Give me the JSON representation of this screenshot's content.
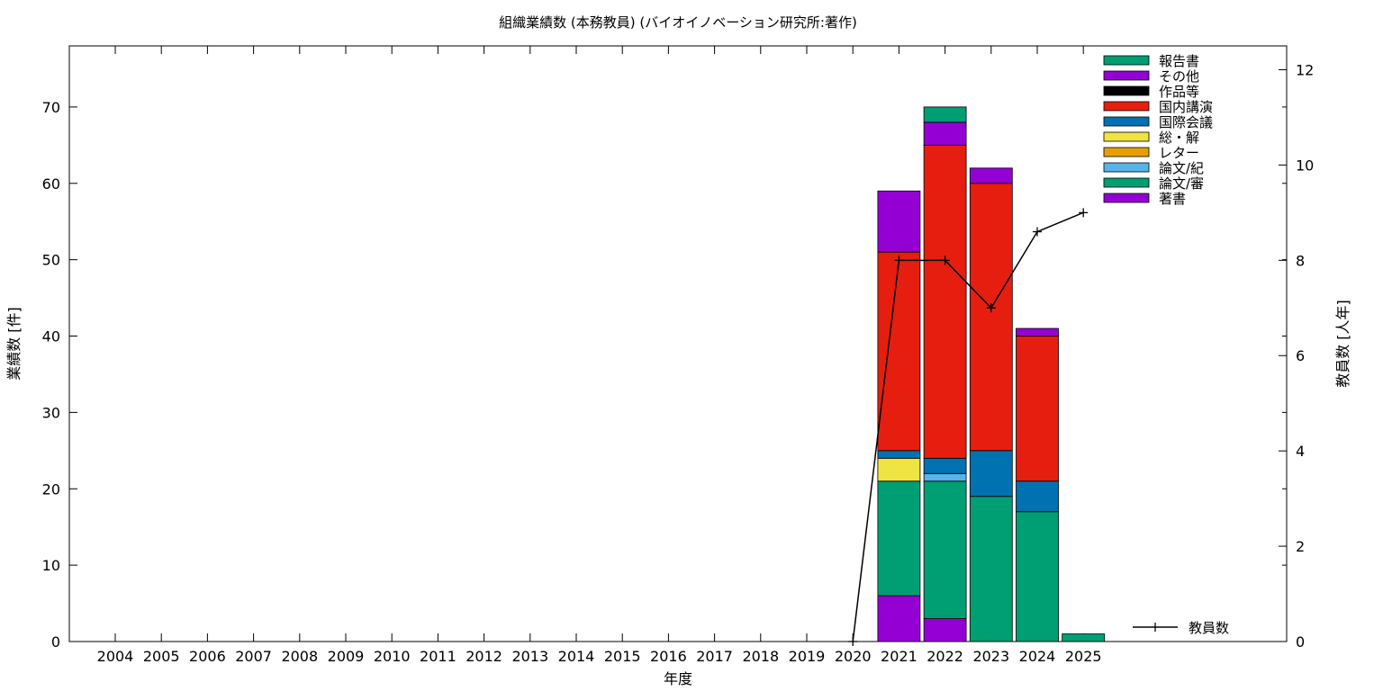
{
  "chart_data": {
    "type": "bar",
    "stacked": true,
    "title": "組織業績数 (本務教員) (バイオイノベーション研究所:著作)",
    "xlabel": "年度",
    "ylabel": "業績数 [件]",
    "y2label": "教員数 [人年]",
    "categories": [
      "2004",
      "2005",
      "2006",
      "2007",
      "2008",
      "2009",
      "2010",
      "2011",
      "2012",
      "2013",
      "2014",
      "2015",
      "2016",
      "2017",
      "2018",
      "2019",
      "2020",
      "2021",
      "2022",
      "2023",
      "2024",
      "2025"
    ],
    "ylim": [
      0,
      78
    ],
    "y2lim": [
      0,
      12.5
    ],
    "yticks": [
      0,
      10,
      20,
      30,
      40,
      50,
      60,
      70
    ],
    "y2ticks": [
      0,
      2,
      4,
      6,
      8,
      10,
      12
    ],
    "legend_position": "top-right",
    "series": [
      {
        "name": "著書",
        "color": "#9400d3",
        "values": [
          0,
          0,
          0,
          0,
          0,
          0,
          0,
          0,
          0,
          0,
          0,
          0,
          0,
          0,
          0,
          0,
          0,
          6,
          3,
          0,
          0,
          0
        ]
      },
      {
        "name": "論文/審",
        "color": "#009e73",
        "values": [
          0,
          0,
          0,
          0,
          0,
          0,
          0,
          0,
          0,
          0,
          0,
          0,
          0,
          0,
          0,
          0,
          0,
          15,
          18,
          19,
          17,
          0
        ]
      },
      {
        "name": "論文/紀",
        "color": "#56b4e9",
        "values": [
          0,
          0,
          0,
          0,
          0,
          0,
          0,
          0,
          0,
          0,
          0,
          0,
          0,
          0,
          0,
          0,
          0,
          0,
          1,
          0,
          0,
          0
        ]
      },
      {
        "name": "レター",
        "color": "#e69f00",
        "values": [
          0,
          0,
          0,
          0,
          0,
          0,
          0,
          0,
          0,
          0,
          0,
          0,
          0,
          0,
          0,
          0,
          0,
          0,
          0,
          0,
          0,
          0
        ]
      },
      {
        "name": "総・解",
        "color": "#f0e442",
        "values": [
          0,
          0,
          0,
          0,
          0,
          0,
          0,
          0,
          0,
          0,
          0,
          0,
          0,
          0,
          0,
          0,
          0,
          3,
          0,
          0,
          0,
          0
        ]
      },
      {
        "name": "国際会議",
        "color": "#0072b2",
        "values": [
          0,
          0,
          0,
          0,
          0,
          0,
          0,
          0,
          0,
          0,
          0,
          0,
          0,
          0,
          0,
          0,
          0,
          1,
          2,
          6,
          4,
          0
        ]
      },
      {
        "name": "国内講演",
        "color": "#e51e10",
        "values": [
          0,
          0,
          0,
          0,
          0,
          0,
          0,
          0,
          0,
          0,
          0,
          0,
          0,
          0,
          0,
          0,
          0,
          26,
          41,
          35,
          19,
          0
        ]
      },
      {
        "name": "作品等",
        "color": "#000000",
        "values": [
          0,
          0,
          0,
          0,
          0,
          0,
          0,
          0,
          0,
          0,
          0,
          0,
          0,
          0,
          0,
          0,
          0,
          0,
          0,
          0,
          0,
          0
        ]
      },
      {
        "name": "その他",
        "color": "#9400d3",
        "values": [
          0,
          0,
          0,
          0,
          0,
          0,
          0,
          0,
          0,
          0,
          0,
          0,
          0,
          0,
          0,
          0,
          0,
          8,
          3,
          2,
          1,
          0
        ]
      },
      {
        "name": "報告書",
        "color": "#009e73",
        "values": [
          0,
          0,
          0,
          0,
          0,
          0,
          0,
          0,
          0,
          0,
          0,
          0,
          0,
          0,
          0,
          0,
          0,
          0,
          2,
          0,
          0,
          1
        ]
      }
    ],
    "line_series": {
      "name": "教員数",
      "axis": "y2",
      "color": "#000000",
      "x": [
        "2020",
        "2021",
        "2022",
        "2023",
        "2024",
        "2025"
      ],
      "values": [
        0,
        8,
        8,
        7,
        8.6,
        9
      ]
    }
  }
}
